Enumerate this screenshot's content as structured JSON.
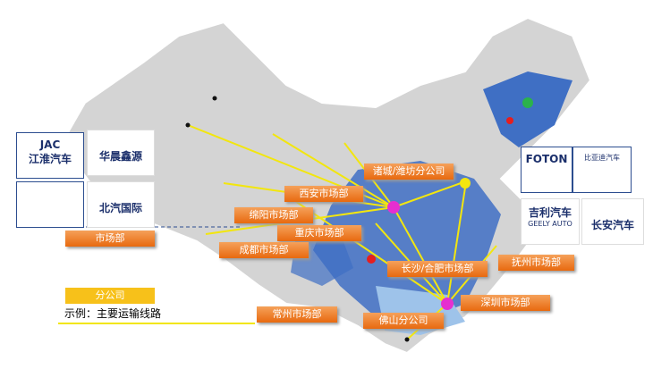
{
  "logos": [
    {
      "mark": "JAC",
      "name": "江淮汽车"
    },
    {
      "name": "华晨鑫源"
    },
    {
      "name": "北汽国际"
    },
    {
      "name": "FOTON"
    },
    {
      "name": "比亚迪汽车"
    },
    {
      "name": "吉利汽车",
      "sub": "GEELY AUTO"
    },
    {
      "name": "长安汽车"
    }
  ],
  "offices": [
    "诸城/潍坊分公司",
    "西安市场部",
    "绵阳市场部",
    "重庆市场部",
    "成都市场部",
    "长沙/合肥市场部",
    "抚州市场部",
    "深圳市场部",
    "常州市场部",
    "佛山分公司"
  ],
  "legend": {
    "market": "市场部",
    "branch": "分公司",
    "route": "示例：主要运输线路"
  }
}
